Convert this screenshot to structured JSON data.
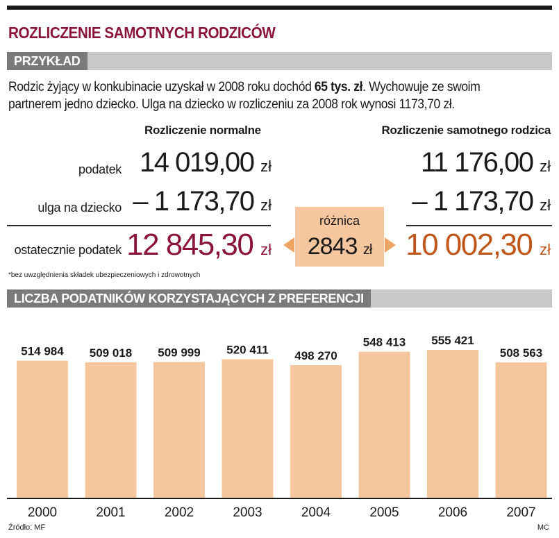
{
  "title": "ROZLICZENIE SAMOTNYCH RODZICÓW",
  "example_header": "PRZYKŁAD",
  "intro": {
    "part1": "Rodzic żyjący w konkubinacie uzyskał w 2008 roku dochód ",
    "bold": "65 tys. zł",
    "part2": ". Wychowuje ze swoim partnerem jedno dziecko. Ulga na dziecko w rozliczeniu za 2008 rok wynosi 1173,70 zł."
  },
  "columns": {
    "normal": "Rozliczenie normalne",
    "single": "Rozliczenie samotnego rodzica"
  },
  "rows": {
    "tax": "podatek",
    "relief": "ulga na dziecko",
    "final": "ostatecznie podatek"
  },
  "normal": {
    "tax": "14 019,00",
    "relief": "– 1 173,70",
    "final": "12 845,30"
  },
  "single": {
    "tax": "11 176,00",
    "relief": "– 1 173,70",
    "final": "10 002,30"
  },
  "currency": "zł",
  "difference": {
    "label": "różnica",
    "value": "2843"
  },
  "footnote": "*bez uwzględnienia składek ubezpieczeniowych i zdrowotnych",
  "chart_header": "LICZBA PODATNIKÓW KORZYSTAJĄCYCH Z PREFERENCJI",
  "colors": {
    "title": "#8b1538",
    "final_normal": "#8b1538",
    "final_single": "#c0571b",
    "bar": "#f6c79f",
    "highlight": "#f6c79f"
  },
  "chart_data": {
    "type": "bar",
    "categories": [
      "2000",
      "2001",
      "2002",
      "2003",
      "2004",
      "2005",
      "2006",
      "2007"
    ],
    "values": [
      514984,
      509018,
      509999,
      520411,
      498270,
      548413,
      555421,
      508563
    ],
    "value_labels": [
      "514 984",
      "509 018",
      "509 999",
      "520 411",
      "498 270",
      "548 413",
      "555 421",
      "508 563"
    ],
    "title": "LICZBA PODATNIKÓW KORZYSTAJĄCYCH Z PREFERENCJI",
    "xlabel": "",
    "ylabel": "",
    "grid": false,
    "legend": "none"
  },
  "source": "Źródło: MF",
  "credit": "MC"
}
